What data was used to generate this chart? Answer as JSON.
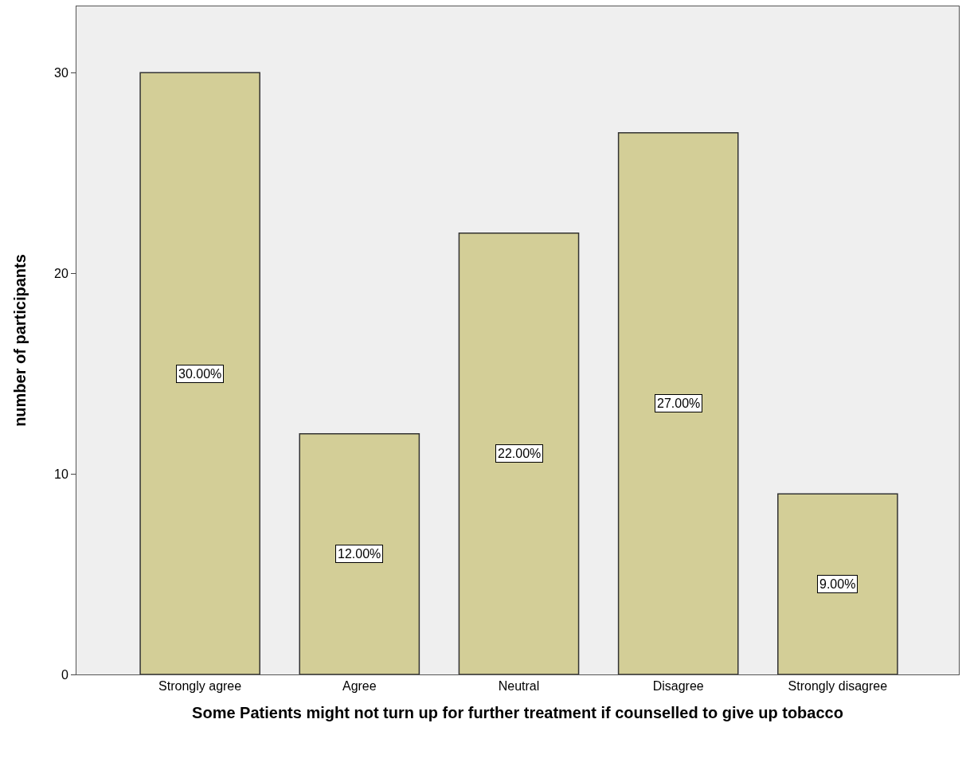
{
  "chart_data": {
    "type": "bar",
    "xlabel": "Some Patients might not turn up for further treatment if counselled to give up tobacco",
    "ylabel": "number of participants",
    "categories": [
      "Strongly agree",
      "Agree",
      "Neutral",
      "Disagree",
      "Strongly disagree"
    ],
    "values": [
      30,
      12,
      22,
      27,
      9
    ],
    "value_labels": [
      "30.00%",
      "12.00%",
      "22.00%",
      "27.00%",
      "9.00%"
    ],
    "color": "#d3ce97",
    "ylim": [
      0,
      33.3
    ],
    "yticks": [
      0,
      10,
      20,
      30
    ],
    "grid": false,
    "legend": false
  }
}
